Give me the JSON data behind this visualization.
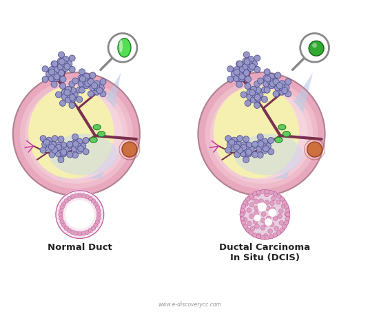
{
  "label_left": "Normal Duct",
  "label_right": "Ductal Carcinoma\nIn Situ (DCIS)",
  "bg_color": "#ffffff",
  "breast_yellow": "#f5f0b0",
  "breast_pink_outer": "#f0b8c8",
  "breast_pink_mid": "#f5ccd8",
  "breast_edge": "#c09090",
  "duct_color": "#8b3060",
  "acini_fill": "#9090c0",
  "acini_edge": "#404080",
  "lymph_fill": "#60cc60",
  "lymph_edge": "#208020",
  "nipple_fill": "#cc7040",
  "nipple_edge": "#994020",
  "beam_color": "#b8cce8",
  "magnifier_circle_color": "#aaaaaa",
  "cyl_fill_left": "#50dd50",
  "cyl_fill_right": "#289828",
  "duct_section_bg": "#f8e8f0",
  "duct_cell_fill": "#e0a0c0",
  "duct_cell_edge": "#c060a0",
  "tumor_cell_fill": "#d898b8",
  "tumor_bg": "#e8d0e0",
  "font_color": "#222222",
  "watermark": "www.e-discoverycc.com",
  "font_size_label": 9.5,
  "font_size_watermark": 5.5
}
